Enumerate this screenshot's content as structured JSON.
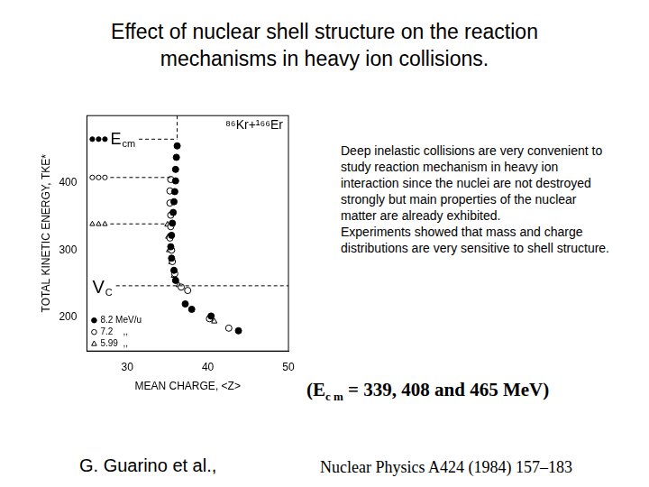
{
  "slide": {
    "title_lines": [
      "Effect of nuclear shell structure on the reaction",
      "mechanisms in heavy ion collisions."
    ],
    "paragraphs": [
      "Deep inelastic  collisions are very convenient to study reaction mechanism in heavy ion interaction since the nuclei are not destroyed strongly but main properties of the nuclear matter are already exhibited.",
      "Experiments showed that mass and charge distributions are very sensitive to shell structure."
    ],
    "energy_note": {
      "prefix": "(E",
      "subscript": "c m",
      "suffix": " = 339, 408 and 465 MeV)"
    },
    "reference": "Nuclear Physics A424 (1984) 157–183",
    "author": "G. Guarino et al.,"
  },
  "chart_data": {
    "type": "scatter",
    "title": "⁸⁶Kr+¹⁶⁶Er",
    "x_label": "MEAN CHARGE, <Z>",
    "y_label": "TOTAL KINETIC ENERGY, TKE*",
    "xlim": [
      25,
      50
    ],
    "xticks": [
      30,
      40,
      50
    ],
    "ylim": [
      150,
      500
    ],
    "yticks": [
      200,
      300,
      400
    ],
    "grid": false,
    "legend": "lower left",
    "ecm_label": "Ecm",
    "vc": {
      "label": "VC",
      "y": 247
    },
    "series": [
      {
        "name": "8.2 MeV/u",
        "color": "#000000",
        "marker": "filled_circle",
        "ecm_tke": 465,
        "x": [
          36.2,
          36.1,
          36.0,
          36.0,
          35.9,
          35.8,
          35.7,
          35.6,
          35.5,
          35.4,
          35.5,
          35.8,
          36.0,
          37.2,
          38.0,
          40.4,
          43.8
        ],
        "values": [
          455,
          438,
          420,
          403,
          387,
          372,
          356,
          340,
          322,
          305,
          288,
          270,
          255,
          220,
          212,
          202,
          180
        ]
      },
      {
        "name": "7.2    ,,",
        "color": "#000000",
        "marker": "open_circle",
        "ecm_tke": 408,
        "x": [
          35.4,
          35.3,
          35.3,
          35.4,
          35.4,
          35.3,
          35.5,
          35.6,
          35.9,
          36.7,
          37.5,
          40.2,
          42.6
        ],
        "values": [
          405,
          388,
          370,
          352,
          335,
          318,
          300,
          283,
          265,
          245,
          240,
          198,
          184
        ]
      },
      {
        "name": "5.99  ,,",
        "color": "#000000",
        "marker": "open_triangle",
        "ecm_tke": 339,
        "x": [
          35.0,
          35.1,
          35.2,
          35.5,
          35.8,
          36.4,
          40.8
        ],
        "values": [
          338,
          320,
          300,
          282,
          262,
          248,
          194
        ]
      }
    ]
  }
}
